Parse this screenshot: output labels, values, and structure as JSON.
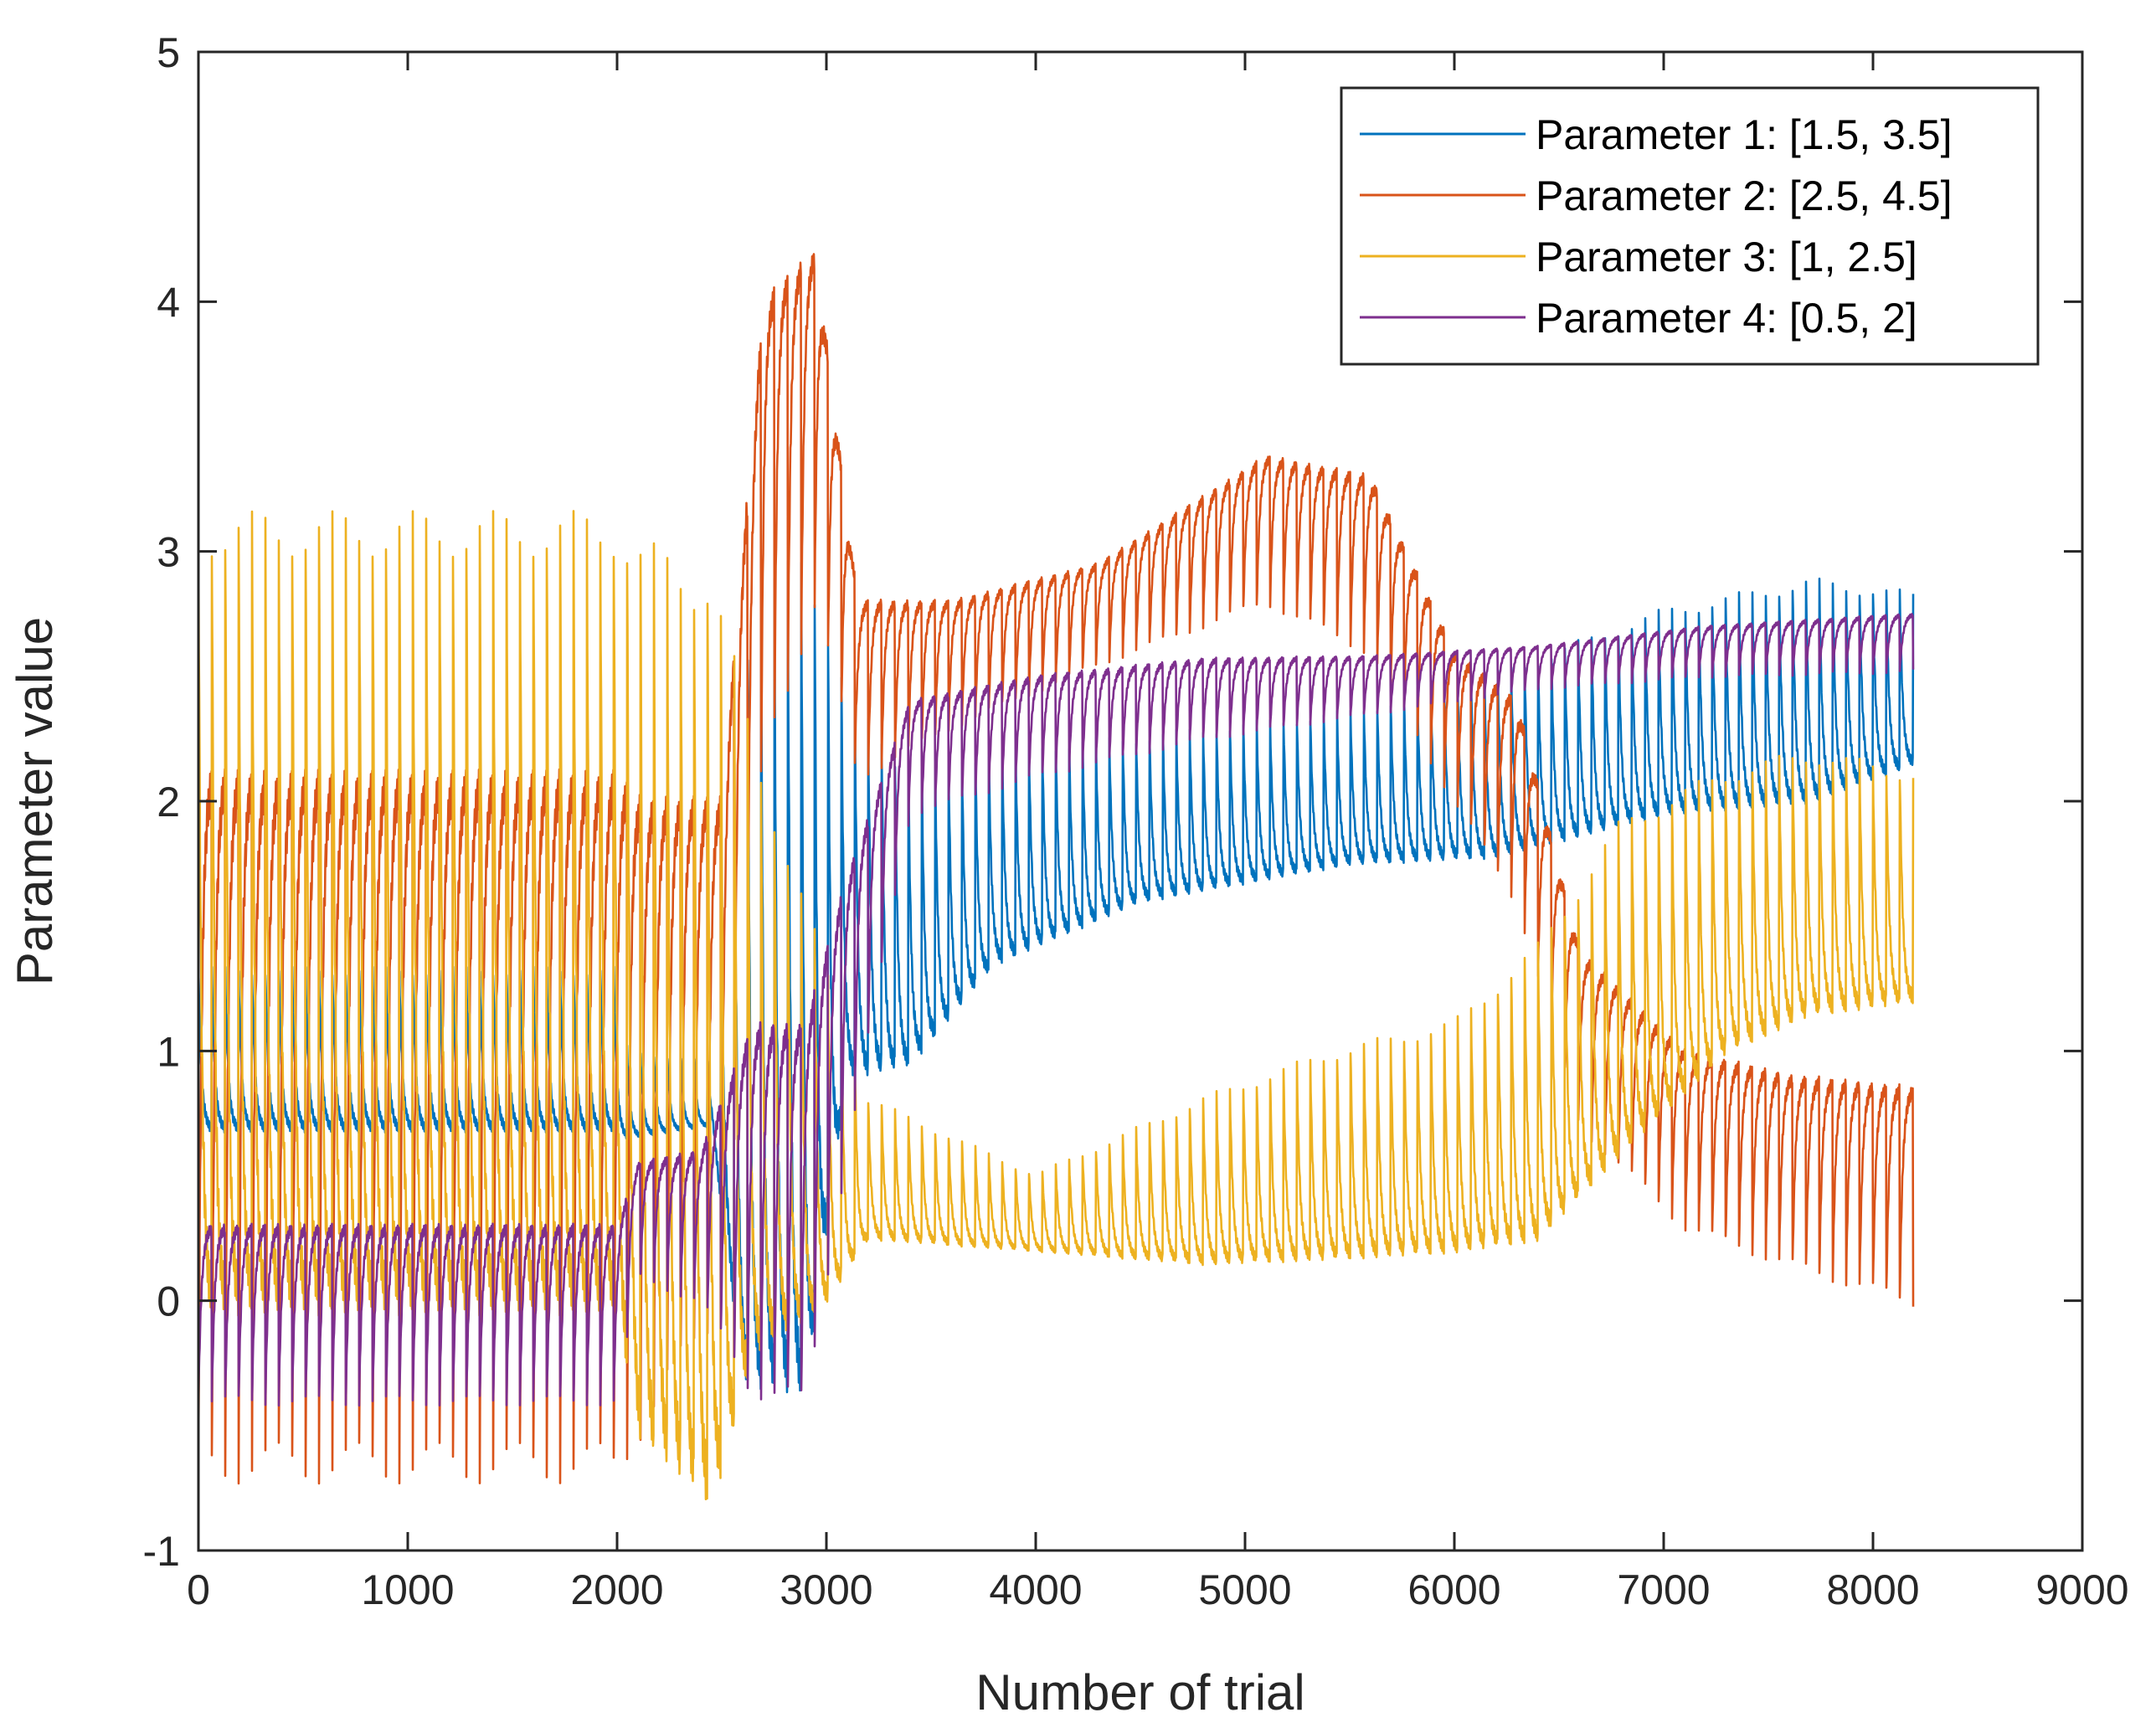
{
  "chart_data": {
    "type": "line",
    "title": "",
    "xlabel": "Number of trial",
    "ylabel": "Parameter value",
    "xlim": [
      0,
      9000
    ],
    "ylim": [
      -1,
      5
    ],
    "xticks": [
      0,
      1000,
      2000,
      3000,
      4000,
      5000,
      6000,
      7000,
      8000,
      9000
    ],
    "xtick_labels": [
      "0",
      "1000",
      "2000",
      "3000",
      "4000",
      "5000",
      "6000",
      "7000",
      "8000",
      "9000"
    ],
    "yticks": [
      -1,
      0,
      1,
      2,
      3,
      4,
      5
    ],
    "ytick_labels": [
      "-1",
      "0",
      "1",
      "2",
      "3",
      "4",
      "5"
    ],
    "grid": false,
    "legend_position": "top-right",
    "num_trials": 8192,
    "cycle_length": 64,
    "series": [
      {
        "name": "Parameter 1: [1.5, 3.5]",
        "color": "#0072BD",
        "waveform": "decay",
        "envelope": [
          {
            "x": 0,
            "hi": 1.32,
            "lo": 0.68
          },
          {
            "x": 2000,
            "hi": 1.32,
            "lo": 0.68
          },
          {
            "x": 2050,
            "hi": 1.0,
            "lo": 0.65
          },
          {
            "x": 2450,
            "hi": 0.95,
            "lo": 0.7
          },
          {
            "x": 2600,
            "hi": 2.6,
            "lo": -0.3
          },
          {
            "x": 2900,
            "hi": 3.0,
            "lo": -0.35
          },
          {
            "x": 3100,
            "hi": 2.4,
            "lo": 0.9
          },
          {
            "x": 3400,
            "hi": 2.1,
            "lo": 0.95
          },
          {
            "x": 3800,
            "hi": 2.2,
            "lo": 1.35
          },
          {
            "x": 4500,
            "hi": 2.25,
            "lo": 1.6
          },
          {
            "x": 5500,
            "hi": 2.35,
            "lo": 1.75
          },
          {
            "x": 6200,
            "hi": 2.5,
            "lo": 1.78
          },
          {
            "x": 7000,
            "hi": 2.75,
            "lo": 1.95
          },
          {
            "x": 7700,
            "hi": 2.87,
            "lo": 2.0
          },
          {
            "x": 8192,
            "hi": 2.82,
            "lo": 2.15
          }
        ]
      },
      {
        "name": "Parameter 2: [2.5, 4.5]",
        "color": "#D95319",
        "waveform": "rise",
        "envelope": [
          {
            "x": 0,
            "hi": 2.1,
            "lo": -0.65
          },
          {
            "x": 2000,
            "hi": 2.1,
            "lo": -0.65
          },
          {
            "x": 2100,
            "hi": 2.0,
            "lo": -0.5
          },
          {
            "x": 2500,
            "hi": 2.0,
            "lo": 0.0
          },
          {
            "x": 2700,
            "hi": 4.0,
            "lo": 2.2
          },
          {
            "x": 2950,
            "hi": 4.2,
            "lo": 2.8
          },
          {
            "x": 3150,
            "hi": 2.8,
            "lo": 2.1
          },
          {
            "x": 3600,
            "hi": 2.8,
            "lo": 2.3
          },
          {
            "x": 4300,
            "hi": 2.95,
            "lo": 2.55
          },
          {
            "x": 5100,
            "hi": 3.38,
            "lo": 2.8
          },
          {
            "x": 5600,
            "hi": 3.3,
            "lo": 2.6
          },
          {
            "x": 6000,
            "hi": 2.6,
            "lo": 2.0
          },
          {
            "x": 6300,
            "hi": 2.4,
            "lo": 1.6
          },
          {
            "x": 6600,
            "hi": 1.4,
            "lo": 0.7
          },
          {
            "x": 7100,
            "hi": 1.0,
            "lo": 0.3
          },
          {
            "x": 7600,
            "hi": 0.9,
            "lo": 0.15
          },
          {
            "x": 8192,
            "hi": 0.85,
            "lo": 0.0
          }
        ]
      },
      {
        "name": "Parameter 3: [1, 2.5]",
        "color": "#EDB120",
        "waveform": "decay",
        "envelope": [
          {
            "x": 0,
            "hi": 3.07,
            "lo": -0.02
          },
          {
            "x": 2000,
            "hi": 3.07,
            "lo": -0.02
          },
          {
            "x": 2100,
            "hi": 2.95,
            "lo": -0.5
          },
          {
            "x": 2450,
            "hi": 2.85,
            "lo": -0.8
          },
          {
            "x": 2650,
            "hi": 2.2,
            "lo": -0.2
          },
          {
            "x": 3000,
            "hi": 1.3,
            "lo": 0.0
          },
          {
            "x": 3200,
            "hi": 0.8,
            "lo": 0.25
          },
          {
            "x": 4000,
            "hi": 0.5,
            "lo": 0.2
          },
          {
            "x": 4800,
            "hi": 0.8,
            "lo": 0.15
          },
          {
            "x": 5400,
            "hi": 0.98,
            "lo": 0.17
          },
          {
            "x": 6000,
            "hi": 1.1,
            "lo": 0.2
          },
          {
            "x": 6400,
            "hi": 1.4,
            "lo": 0.25
          },
          {
            "x": 6800,
            "hi": 1.9,
            "lo": 0.6
          },
          {
            "x": 7300,
            "hi": 2.1,
            "lo": 1.0
          },
          {
            "x": 7700,
            "hi": 2.18,
            "lo": 1.15
          },
          {
            "x": 8192,
            "hi": 2.1,
            "lo": 1.2
          }
        ]
      },
      {
        "name": "Parameter 4: [0.5, 2]",
        "color": "#7E2F8E",
        "waveform": "rise",
        "envelope": [
          {
            "x": 0,
            "hi": 0.3,
            "lo": -0.4
          },
          {
            "x": 2000,
            "hi": 0.3,
            "lo": -0.4
          },
          {
            "x": 2100,
            "hi": 0.55,
            "lo": 0.1
          },
          {
            "x": 2400,
            "hi": 0.6,
            "lo": 0.0
          },
          {
            "x": 2650,
            "hi": 1.1,
            "lo": -0.35
          },
          {
            "x": 2900,
            "hi": 1.1,
            "lo": -0.4
          },
          {
            "x": 3100,
            "hi": 1.7,
            "lo": 0.6
          },
          {
            "x": 3400,
            "hi": 2.4,
            "lo": 1.95
          },
          {
            "x": 4000,
            "hi": 2.5,
            "lo": 2.1
          },
          {
            "x": 4800,
            "hi": 2.57,
            "lo": 2.25
          },
          {
            "x": 5600,
            "hi": 2.58,
            "lo": 2.35
          },
          {
            "x": 6400,
            "hi": 2.62,
            "lo": 2.45
          },
          {
            "x": 7200,
            "hi": 2.7,
            "lo": 2.5
          },
          {
            "x": 8192,
            "hi": 2.75,
            "lo": 2.52
          }
        ]
      }
    ]
  }
}
